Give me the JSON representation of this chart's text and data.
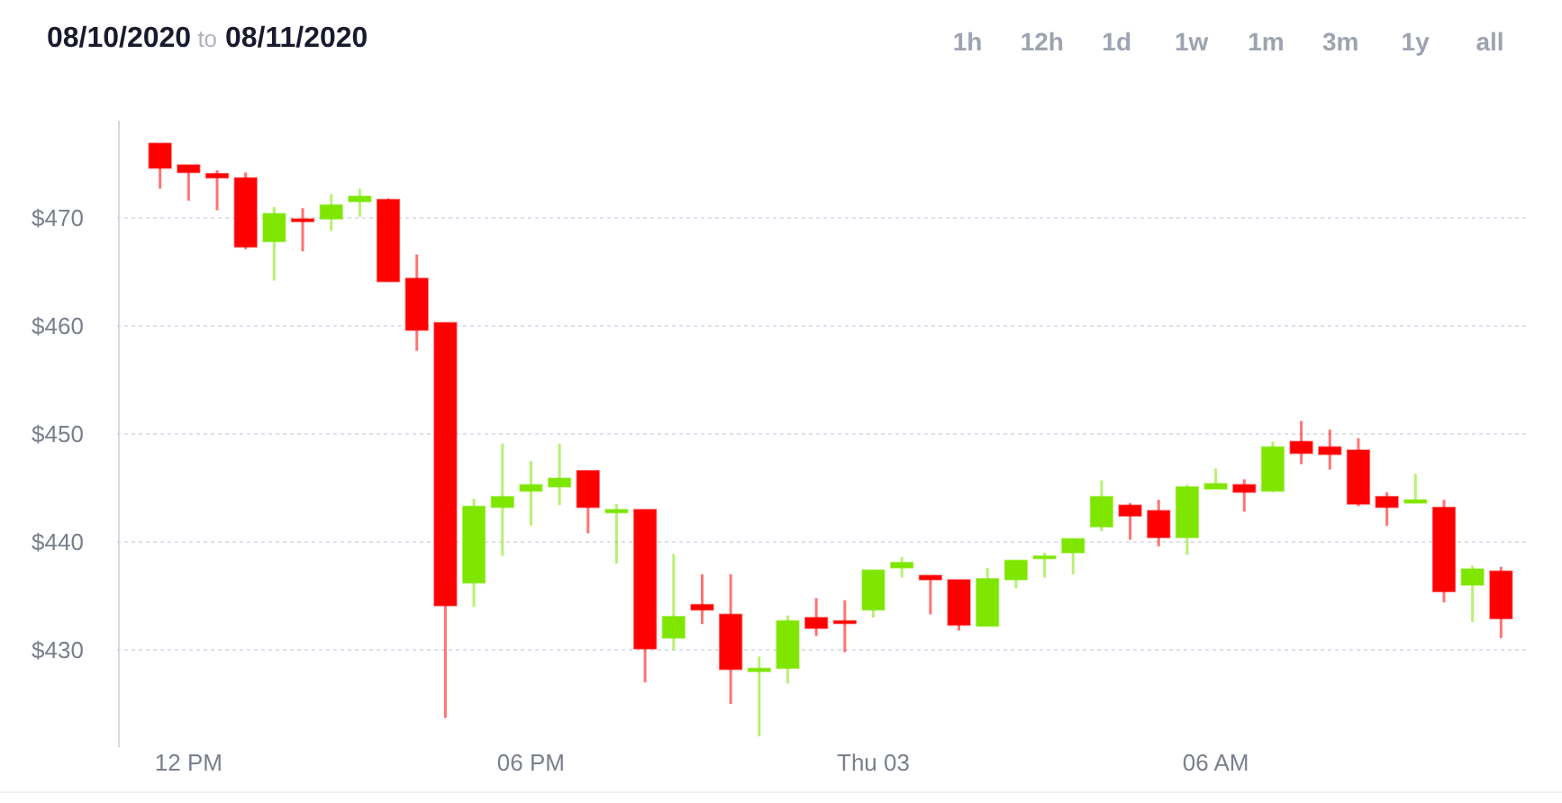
{
  "chart_data": {
    "type": "candlestick",
    "title": "08/10/2020 to 08/11/2020",
    "annotations": [
      "1h",
      "12h",
      "1d",
      "1w",
      "1m",
      "3m",
      "1y",
      "all"
    ],
    "categories": [
      null,
      "12 PM",
      null,
      null,
      null,
      null,
      null,
      null,
      null,
      null,
      null,
      null,
      null,
      "06 PM",
      null,
      null,
      null,
      null,
      null,
      null,
      null,
      null,
      null,
      null,
      null,
      "Thu 03",
      null,
      null,
      null,
      null,
      null,
      null,
      null,
      null,
      null,
      null,
      null,
      "06 AM",
      null,
      null,
      null,
      null,
      null,
      null,
      null,
      null,
      null,
      null
    ],
    "ohlc": [
      [
        476.9,
        476.9,
        472.7,
        474.6
      ],
      [
        474.9,
        474.9,
        471.6,
        474.2
      ],
      [
        474.1,
        474.4,
        470.7,
        473.7
      ],
      [
        473.7,
        474.2,
        467.1,
        467.3
      ],
      [
        467.8,
        471.0,
        464.2,
        470.4
      ],
      [
        469.9,
        470.9,
        466.9,
        469.7
      ],
      [
        469.9,
        472.2,
        468.8,
        471.2
      ],
      [
        471.5,
        472.7,
        470.1,
        472.0
      ],
      [
        471.7,
        471.8,
        464.1,
        464.1
      ],
      [
        464.4,
        466.6,
        457.7,
        459.6
      ],
      [
        460.3,
        460.3,
        423.7,
        434.1
      ],
      [
        436.2,
        444.0,
        434.0,
        443.3
      ],
      [
        443.2,
        449.1,
        438.7,
        444.2
      ],
      [
        444.7,
        447.5,
        441.5,
        445.3
      ],
      [
        445.1,
        449.1,
        443.4,
        445.9
      ],
      [
        446.6,
        446.6,
        440.8,
        443.2
      ],
      [
        442.7,
        443.5,
        438.0,
        443.0
      ],
      [
        443.0,
        443.0,
        427.0,
        430.1
      ],
      [
        431.1,
        438.9,
        430.0,
        433.1
      ],
      [
        434.2,
        437.0,
        432.4,
        433.7
      ],
      [
        433.3,
        437.0,
        425.0,
        428.2
      ],
      [
        428.0,
        429.4,
        422.0,
        428.3
      ],
      [
        428.3,
        433.2,
        426.9,
        432.7
      ],
      [
        433.0,
        434.8,
        431.3,
        432.0
      ],
      [
        432.7,
        434.6,
        429.8,
        432.6
      ],
      [
        433.7,
        437.4,
        433.0,
        437.4
      ],
      [
        437.6,
        438.6,
        436.7,
        438.1
      ],
      [
        436.9,
        436.9,
        433.3,
        436.5
      ],
      [
        436.5,
        436.5,
        431.8,
        432.3
      ],
      [
        432.2,
        437.6,
        432.2,
        436.6
      ],
      [
        436.5,
        438.3,
        435.7,
        438.3
      ],
      [
        438.5,
        439.0,
        436.7,
        438.7
      ],
      [
        439.0,
        440.3,
        437.0,
        440.3
      ],
      [
        441.4,
        445.7,
        441.0,
        444.2
      ],
      [
        443.4,
        443.6,
        440.2,
        442.4
      ],
      [
        442.9,
        443.9,
        439.6,
        440.4
      ],
      [
        440.4,
        445.3,
        438.8,
        445.1
      ],
      [
        444.9,
        446.8,
        444.9,
        445.4
      ],
      [
        445.3,
        445.8,
        442.8,
        444.6
      ],
      [
        444.7,
        449.3,
        444.6,
        448.8
      ],
      [
        449.3,
        451.2,
        447.2,
        448.2
      ],
      [
        448.8,
        450.4,
        446.7,
        448.1
      ],
      [
        448.5,
        449.6,
        443.3,
        443.5
      ],
      [
        444.2,
        444.6,
        441.5,
        443.2
      ],
      [
        443.6,
        446.3,
        443.6,
        443.9
      ],
      [
        443.2,
        443.9,
        434.4,
        435.4
      ],
      [
        436.0,
        437.8,
        432.6,
        437.5
      ],
      [
        437.3,
        437.7,
        431.1,
        432.9
      ]
    ],
    "colors": [
      "#ff0000",
      "#ff0000",
      "#ff0000",
      "#ff0000",
      "#7ee600",
      "#ff0000",
      "#7ee600",
      "#7ee600",
      "#ff0000",
      "#ff0000",
      "#ff0000",
      "#7ee600",
      "#7ee600",
      "#7ee600",
      "#7ee600",
      "#ff0000",
      "#7ee600",
      "#ff0000",
      "#7ee600",
      "#ff0000",
      "#ff0000",
      "#7ee600",
      "#7ee600",
      "#ff0000",
      "#ff0000",
      "#7ee600",
      "#7ee600",
      "#ff0000",
      "#ff0000",
      "#7ee600",
      "#7ee600",
      "#7ee600",
      "#7ee600",
      "#7ee600",
      "#ff0000",
      "#ff0000",
      "#7ee600",
      "#7ee600",
      "#ff0000",
      "#7ee600",
      "#ff0000",
      "#ff0000",
      "#ff0000",
      "#ff0000",
      "#7ee600",
      "#ff0000",
      "#7ee600",
      "#ff0000"
    ],
    "ylim": [
      421,
      479
    ],
    "yticks": [
      {
        "value": 430,
        "label": "$430"
      },
      {
        "value": 440,
        "label": "$440"
      },
      {
        "value": 450,
        "label": "$450"
      },
      {
        "value": 460,
        "label": "$460"
      },
      {
        "value": 470,
        "label": "$470"
      }
    ],
    "grid": "y"
  }
}
